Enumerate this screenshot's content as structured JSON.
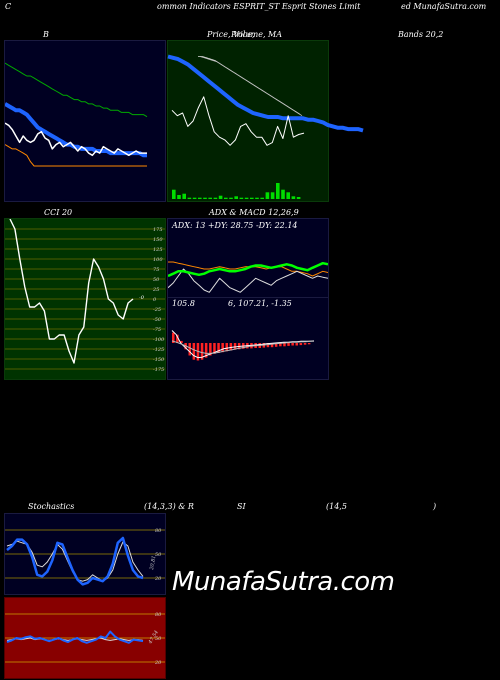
{
  "header": {
    "left": "C",
    "middle": "ommon  Indicators ESPRIT_ST Esprit Stones Limit",
    "right": "ed MunafaSutra.com"
  },
  "labels": {
    "bands_b": "B",
    "price_vol_ma": "Price,  Volume,  MA",
    "price_overlap": "Price,",
    "bands_right": "Bands 20,2",
    "cci": "CCI 20",
    "adx_macd": "ADX  & MACD 12,26,9",
    "adx_values": "ADX: 13  +DY: 28.75  -DY: 22.14",
    "macd_values_a": "105.8",
    "macd_values_b": "6,  107.21,  -1.35",
    "stoch_left": "Stochastics",
    "stoch_params": "(14,3,3) & R",
    "rsi_si": "SI",
    "rsi_params": "(14,5",
    "rsi_close": ")",
    "stoch_tag": "20,81",
    "rsi_tag": "47.54",
    "cci_tag": "-0"
  },
  "watermark": "MunafaSutra.com",
  "colors": {
    "bb_bg": "#000022",
    "price_bg": "#002200",
    "cci_bg": "#003300",
    "adx_bg": "#000022",
    "stoch_bg": "#000022",
    "rsi_bg": "#880000",
    "band_upper": "#00aa00",
    "band_lower": "#ff8800",
    "ma_blue": "#1e64ff",
    "price_white": "#ffffff",
    "cci_grid": "#a08a00",
    "di_plus": "#00ff00",
    "di_minus": "#ff8800",
    "macd_hist": "#ff2222"
  },
  "chart_data": [
    {
      "id": "bollinger",
      "type": "line",
      "series": [
        {
          "values": [
            92,
            91,
            90,
            89,
            88,
            87,
            86,
            86,
            85,
            84,
            83,
            82,
            81,
            80,
            79,
            78,
            77,
            77,
            76,
            75,
            75,
            74,
            74,
            73,
            73,
            72,
            72,
            71,
            71,
            70,
            70,
            70,
            69,
            69,
            69,
            68,
            68,
            68,
            68,
            67
          ]
        },
        {
          "values": [
            73,
            72,
            71,
            70,
            70,
            69,
            68,
            66,
            64,
            62,
            61,
            60,
            59,
            58,
            57,
            56,
            55,
            54,
            54,
            53,
            53,
            52,
            52,
            52,
            52,
            51,
            51,
            51,
            51,
            50,
            50,
            50,
            50,
            50,
            50,
            50,
            50,
            50,
            49,
            49
          ]
        },
        {
          "values": [
            54,
            53,
            52,
            52,
            51,
            50,
            49,
            46,
            44,
            44,
            44,
            44,
            44,
            44,
            44,
            44,
            44,
            44,
            44,
            44,
            44,
            44,
            44,
            44,
            44,
            44,
            44,
            44,
            44,
            44,
            44,
            44,
            44,
            44,
            44,
            44,
            44,
            44,
            44,
            44
          ]
        },
        {
          "values": [
            64,
            63,
            61,
            58,
            55,
            58,
            56,
            55,
            56,
            59,
            60,
            57,
            56,
            52,
            54,
            55,
            53,
            54,
            55,
            53,
            51,
            53,
            52,
            50,
            49,
            51,
            50,
            53,
            52,
            51,
            50,
            52,
            51,
            50,
            49,
            50,
            51,
            50,
            50,
            50
          ]
        }
      ],
      "ylim": [
        30,
        100
      ]
    },
    {
      "id": "price_volume_ma",
      "type": "line",
      "series": [
        {
          "values": [
            100,
            99,
            98,
            96,
            94,
            91,
            88,
            85,
            82,
            79,
            76,
            73,
            70,
            67,
            64,
            62,
            60,
            58,
            57,
            56,
            55,
            55,
            55,
            54,
            54,
            54,
            54,
            54,
            53,
            53,
            52,
            51,
            49,
            48,
            47,
            47,
            46,
            46,
            46,
            45
          ]
        },
        {
          "values": [
            100,
            100,
            99,
            98,
            97,
            95,
            93,
            91,
            89,
            87,
            85,
            83,
            81,
            79,
            77,
            75,
            73,
            71,
            69,
            67,
            65,
            63,
            61,
            59,
            57
          ]
        },
        {
          "values": [
            100,
            99,
            98,
            97,
            96,
            94,
            92,
            90,
            88,
            86,
            84,
            82,
            80,
            78,
            76,
            74,
            72,
            70,
            68,
            66,
            64,
            62,
            60,
            58,
            56
          ]
        },
        {
          "values": [
            60,
            56,
            58,
            48,
            52,
            62,
            70,
            56,
            44,
            40,
            38,
            34,
            38,
            48,
            50,
            44,
            40,
            40,
            34,
            36,
            48,
            39,
            56,
            40,
            42,
            43
          ]
        }
      ],
      "volume": [
        14,
        6,
        8,
        2,
        2,
        2,
        2,
        2,
        2,
        5,
        2,
        2,
        4,
        2,
        2,
        2,
        2,
        2,
        10,
        10,
        24,
        14,
        10,
        4,
        3
      ],
      "ylim": [
        0,
        110
      ]
    },
    {
      "id": "cci",
      "type": "line",
      "series": [
        {
          "values": [
            200,
            175,
            100,
            30,
            -20,
            -20,
            -10,
            -30,
            -100,
            -100,
            -90,
            -90,
            -130,
            -160,
            -90,
            -70,
            40,
            100,
            80,
            50,
            0,
            -10,
            -40,
            -50,
            -10,
            0
          ]
        }
      ],
      "yticks": [
        175,
        150,
        125,
        100,
        75,
        50,
        25,
        0,
        -25,
        -50,
        -75,
        -100,
        -125,
        -150,
        -175
      ],
      "ylim": [
        -200,
        200
      ]
    },
    {
      "id": "adx",
      "type": "line",
      "series": [
        {
          "values": [
            18,
            20,
            22,
            22,
            21,
            20,
            19,
            20,
            22,
            23,
            24,
            23,
            22,
            22,
            23,
            24,
            26,
            27,
            27,
            26,
            25,
            26,
            27,
            28,
            27,
            25,
            24,
            23,
            25,
            27,
            29,
            28
          ]
        },
        {
          "values": [
            30,
            30,
            29,
            28,
            27,
            26,
            25,
            24,
            24,
            25,
            26,
            25,
            24,
            24,
            25,
            26,
            26,
            26,
            25,
            24,
            25,
            26,
            26,
            24,
            22,
            22,
            21,
            20,
            18,
            20,
            22,
            21
          ]
        },
        {
          "values": [
            8,
            12,
            18,
            24,
            20,
            14,
            10,
            6,
            4,
            10,
            16,
            12,
            8,
            6,
            4,
            8,
            12,
            16,
            14,
            12,
            10,
            14,
            16,
            18,
            20,
            22,
            20,
            18,
            16,
            18,
            17,
            16
          ]
        }
      ],
      "ylim": [
        0,
        60
      ]
    },
    {
      "id": "macd",
      "type": "bar",
      "series": [
        {
          "values": [
            2.5,
            2.0,
            0.5,
            -1.5,
            -3.0,
            -4.0,
            -4.2,
            -4.0,
            -3.5,
            -3.0,
            -2.6,
            -2.4,
            -2.2,
            -2.0,
            -1.8,
            -1.6,
            -1.5,
            -1.4,
            -1.3,
            -1.3,
            -1.2,
            -1.2,
            -1.1,
            -1.0,
            -1.0,
            -0.9,
            -0.8,
            -0.8,
            -0.7,
            -0.6,
            -0.6,
            -0.5,
            -0.4,
            -0.3
          ]
        },
        {
          "values": [
            3,
            2,
            0,
            -1,
            -2,
            -3,
            -3.5,
            -3.4,
            -3,
            -2.6,
            -2.2,
            -1.8,
            -1.4,
            -1.2,
            -1.0,
            -0.9,
            -0.8,
            -0.7,
            -0.6,
            -0.5,
            -0.4,
            -0.3,
            -0.2,
            -0.1,
            0,
            0.1,
            0.2,
            0.2,
            0.3,
            0.3,
            0.4,
            0.4,
            0.4,
            0.5
          ]
        },
        {
          "values": [
            0.5,
            0.2,
            -0.2,
            -0.6,
            -1.1,
            -1.6,
            -2.0,
            -2.3,
            -2.5,
            -2.5,
            -2.4,
            -2.2,
            -2.0,
            -1.8,
            -1.6,
            -1.4,
            -1.2,
            -1.0,
            -0.8,
            -0.7,
            -0.6,
            -0.5,
            -0.4,
            -0.3,
            -0.2,
            -0.1,
            0,
            0.1,
            0.2,
            0.2,
            0.3,
            0.3,
            0.4,
            0.4
          ]
        }
      ],
      "ylim": [
        -6,
        6
      ]
    },
    {
      "id": "stochastics",
      "type": "line",
      "series": [
        {
          "values": [
            60,
            62,
            66,
            64,
            62,
            52,
            36,
            34,
            40,
            50,
            62,
            56,
            42,
            28,
            18,
            16,
            18,
            24,
            20,
            16,
            20,
            30,
            50,
            65,
            60,
            40,
            30,
            22
          ]
        },
        {
          "values": [
            55,
            60,
            68,
            68,
            62,
            46,
            24,
            22,
            28,
            42,
            64,
            62,
            46,
            30,
            18,
            12,
            14,
            20,
            18,
            16,
            22,
            38,
            64,
            70,
            48,
            30,
            22,
            20
          ]
        }
      ],
      "yticks": [
        80,
        50,
        20
      ],
      "ylim": [
        0,
        100
      ]
    },
    {
      "id": "rsi",
      "type": "line",
      "series": [
        {
          "values": [
            47,
            48,
            49,
            48,
            49,
            50,
            48,
            49,
            48,
            47,
            48,
            49,
            48,
            47,
            48,
            49,
            48,
            47,
            48,
            49,
            50,
            48,
            47,
            48,
            49,
            48,
            47,
            48,
            48,
            47
          ]
        },
        {
          "values": [
            45,
            47,
            50,
            49,
            51,
            52,
            49,
            50,
            48,
            46,
            48,
            50,
            47,
            45,
            48,
            50,
            46,
            44,
            46,
            48,
            52,
            50,
            58,
            52,
            48,
            46,
            44,
            48,
            47,
            46
          ]
        }
      ],
      "yticks": [
        80,
        50,
        20
      ],
      "ylim": [
        0,
        100
      ]
    }
  ]
}
